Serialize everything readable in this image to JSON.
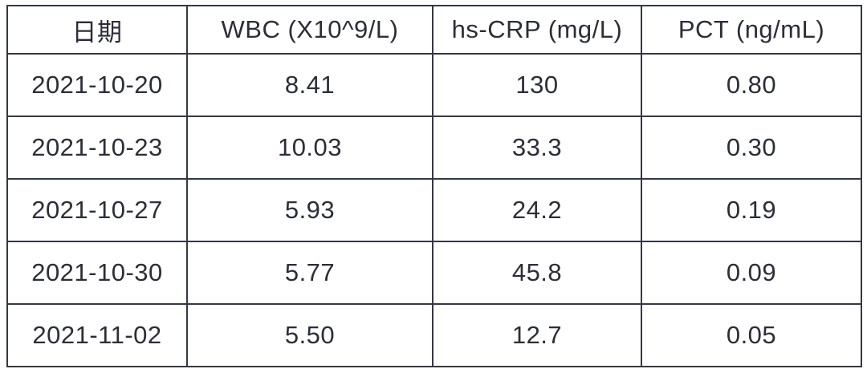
{
  "table": {
    "headers": [
      "日期",
      "WBC (X10^9/L)",
      "hs-CRP (mg/L)",
      "PCT (ng/mL)"
    ],
    "rows": [
      [
        "2021-10-20",
        "8.41",
        "130",
        "0.80"
      ],
      [
        "2021-10-23",
        "10.03",
        "33.3",
        "0.30"
      ],
      [
        "2021-10-27",
        "5.93",
        "24.2",
        "0.19"
      ],
      [
        "2021-10-30",
        "5.77",
        "45.8",
        "0.09"
      ],
      [
        "2021-11-02",
        "5.50",
        "12.7",
        "0.05"
      ]
    ]
  },
  "chart_data": {
    "type": "table",
    "title": "",
    "columns": [
      "日期",
      "WBC (X10^9/L)",
      "hs-CRP (mg/L)",
      "PCT (ng/mL)"
    ],
    "rows": [
      {
        "date": "2021-10-20",
        "wbc": 8.41,
        "hs_crp": 130,
        "pct": 0.8
      },
      {
        "date": "2021-10-23",
        "wbc": 10.03,
        "hs_crp": 33.3,
        "pct": 0.3
      },
      {
        "date": "2021-10-27",
        "wbc": 5.93,
        "hs_crp": 24.2,
        "pct": 0.19
      },
      {
        "date": "2021-10-30",
        "wbc": 5.77,
        "hs_crp": 45.8,
        "pct": 0.09
      },
      {
        "date": "2021-11-02",
        "wbc": 5.5,
        "hs_crp": 12.7,
        "pct": 0.05
      }
    ]
  },
  "colors": {
    "border": "#343842",
    "text": "#2b2e37",
    "background": "#ffffff"
  }
}
